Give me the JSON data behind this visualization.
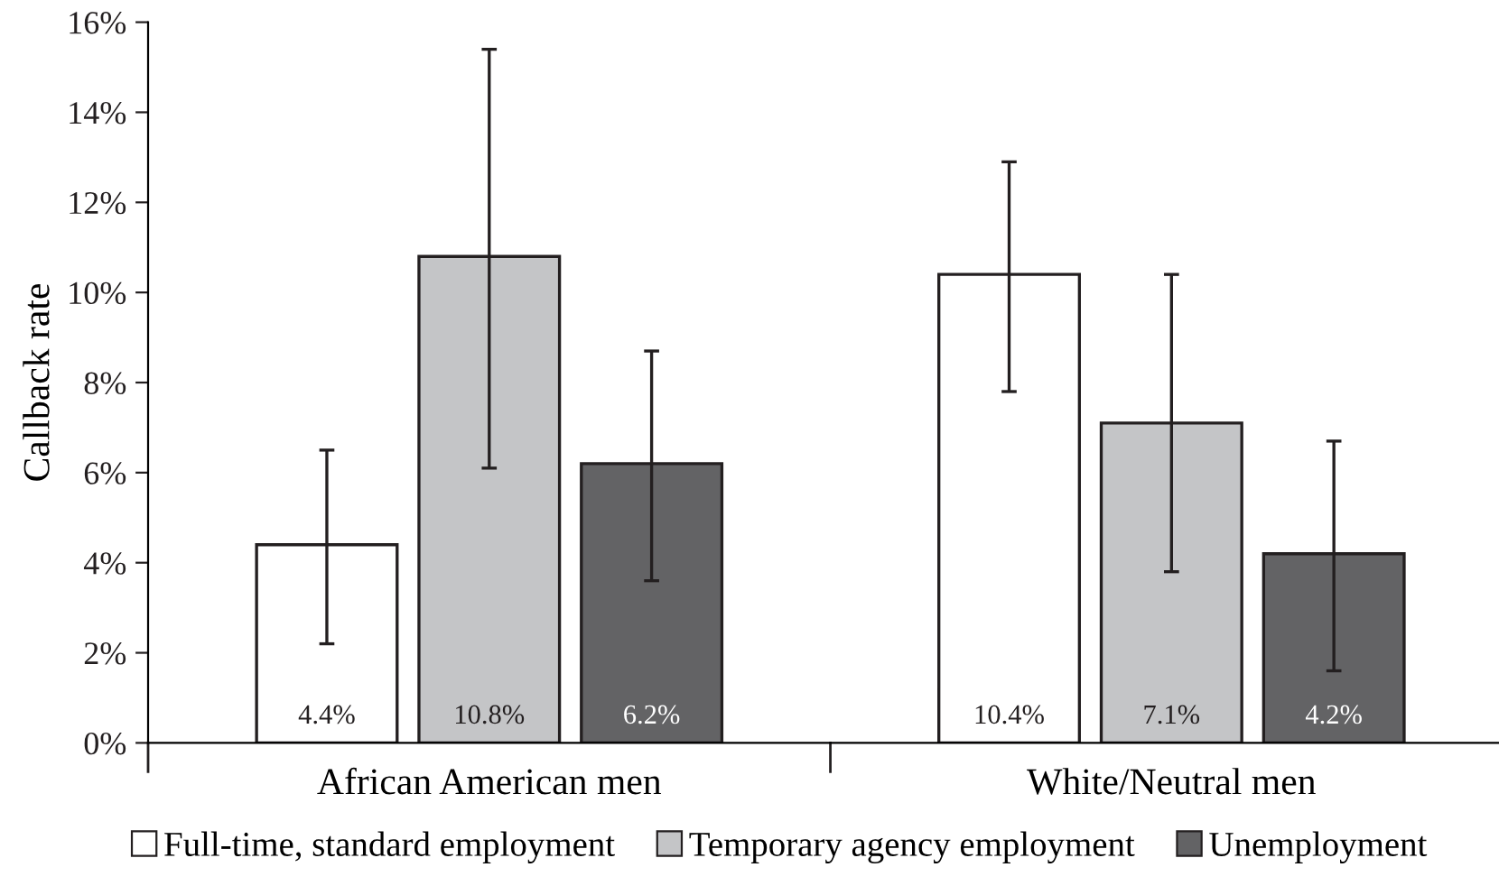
{
  "chart_data": {
    "type": "bar",
    "ylabel": "Callback rate",
    "categories": [
      "African American men",
      "White/Neutral men"
    ],
    "series": [
      {
        "name": "Full-time, standard employment",
        "color": "#ffffff",
        "values": [
          4.4,
          10.4
        ],
        "errors": [
          [
            2.2,
            6.5
          ],
          [
            7.8,
            12.9
          ]
        ],
        "value_labels": [
          "4.4%",
          "10.4%"
        ]
      },
      {
        "name": "Temporary agency employment",
        "color": "#c4c5c7",
        "values": [
          10.8,
          7.1
        ],
        "errors": [
          [
            6.1,
            15.4
          ],
          [
            3.8,
            10.4
          ]
        ],
        "value_labels": [
          "10.8%",
          "7.1%"
        ]
      },
      {
        "name": "Unemployment",
        "color": "#636365",
        "values": [
          6.2,
          4.2
        ],
        "errors": [
          [
            3.6,
            8.7
          ],
          [
            1.6,
            6.7
          ]
        ],
        "value_labels": [
          "6.2%",
          "4.2%"
        ]
      }
    ],
    "ylim": [
      0,
      16
    ],
    "yticks": [
      {
        "value": 0,
        "label": "0%"
      },
      {
        "value": 2,
        "label": "2%"
      },
      {
        "value": 4,
        "label": "4%"
      },
      {
        "value": 6,
        "label": "6%"
      },
      {
        "value": 8,
        "label": "8%"
      },
      {
        "value": 10,
        "label": "10%"
      },
      {
        "value": 12,
        "label": "12%"
      },
      {
        "value": 14,
        "label": "14%"
      },
      {
        "value": 16,
        "label": "16%"
      }
    ],
    "grid": false,
    "legend": "bottom"
  }
}
